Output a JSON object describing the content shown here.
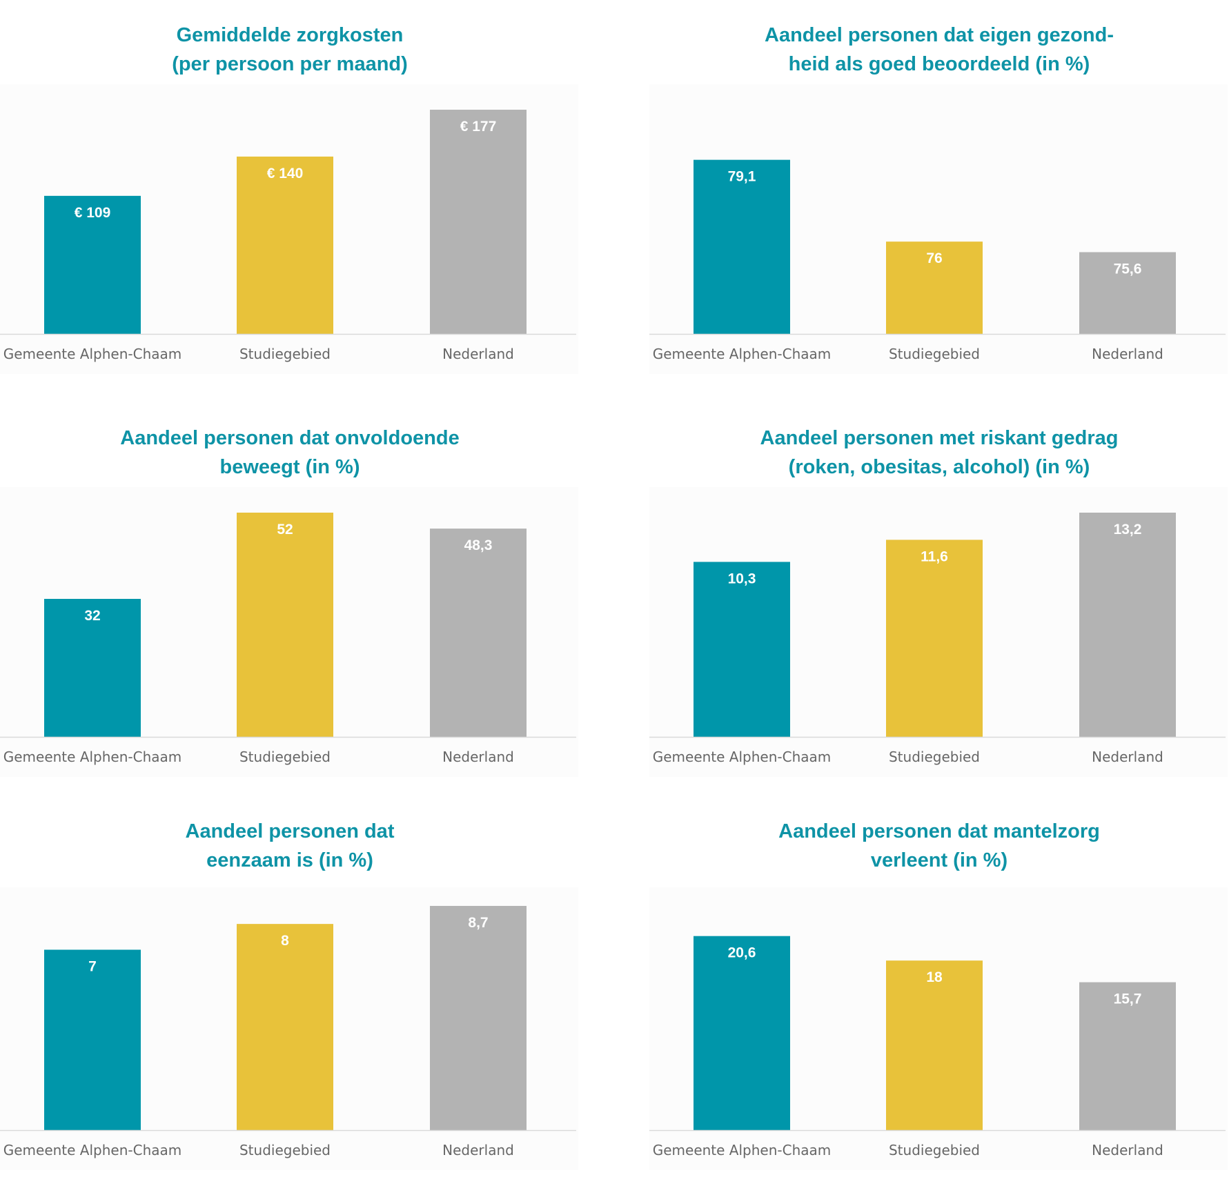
{
  "colors": {
    "title": "#0e93a6",
    "bar_colors": [
      "#0096aa",
      "#e8c23a",
      "#b3b3b3"
    ],
    "bar_label": "#ffffff",
    "category_label": "#666666",
    "axis_line": "#d9d9d9"
  },
  "chart_data": [
    {
      "type": "bar",
      "title": "Gemiddelde zorgkosten\n(per persoon per maand)",
      "categories": [
        "Gemeente Alphen-Chaam",
        "Studiegebied",
        "Nederland"
      ],
      "values": [
        109,
        140,
        177
      ],
      "data_labels": [
        "€ 109",
        "€ 140",
        "€ 177"
      ],
      "ylim": [
        0,
        177
      ],
      "grid": false,
      "legend": "none"
    },
    {
      "type": "bar",
      "title": "Aandeel personen dat eigen gezond-\nheid als goed beoordeeld (in %)",
      "categories": [
        "Gemeente Alphen-Chaam",
        "Studiegebied",
        "Nederland"
      ],
      "values": [
        79.1,
        76,
        75.6
      ],
      "data_labels": [
        "79,1",
        "76",
        "75,6"
      ],
      "ylim": [
        72.5,
        81
      ],
      "grid": false,
      "legend": "none"
    },
    {
      "type": "bar",
      "title": "Aandeel personen dat onvoldoende\nbeweegt (in %)",
      "categories": [
        "Gemeente Alphen-Chaam",
        "Studiegebied",
        "Nederland"
      ],
      "values": [
        32,
        52,
        48.3
      ],
      "data_labels": [
        "32",
        "52",
        "48,3"
      ],
      "ylim": [
        0,
        52
      ],
      "grid": false,
      "legend": "none"
    },
    {
      "type": "bar",
      "title": "Aandeel personen met riskant gedrag\n(roken, obesitas, alcohol) (in %)",
      "categories": [
        "Gemeente Alphen-Chaam",
        "Studiegebied",
        "Nederland"
      ],
      "values": [
        10.3,
        11.6,
        13.2
      ],
      "data_labels": [
        "10,3",
        "11,6",
        "13,2"
      ],
      "ylim": [
        0,
        13.2
      ],
      "grid": false,
      "legend": "none"
    },
    {
      "type": "bar",
      "title": "Aandeel personen dat\neenzaam is (in %)",
      "categories": [
        "Gemeente Alphen-Chaam",
        "Studiegebied",
        "Nederland"
      ],
      "values": [
        7,
        8,
        8.7
      ],
      "data_labels": [
        "7",
        "8",
        "8,7"
      ],
      "ylim": [
        0,
        8.7
      ],
      "grid": false,
      "legend": "none"
    },
    {
      "type": "bar",
      "title": "Aandeel personen dat mantelzorg\nverleent (in %)",
      "categories": [
        "Gemeente Alphen-Chaam",
        "Studiegebied",
        "Nederland"
      ],
      "values": [
        20.6,
        18,
        15.7
      ],
      "data_labels": [
        "20,6",
        "18",
        "15,7"
      ],
      "ylim": [
        0,
        23.8
      ],
      "grid": false,
      "legend": "none"
    }
  ]
}
